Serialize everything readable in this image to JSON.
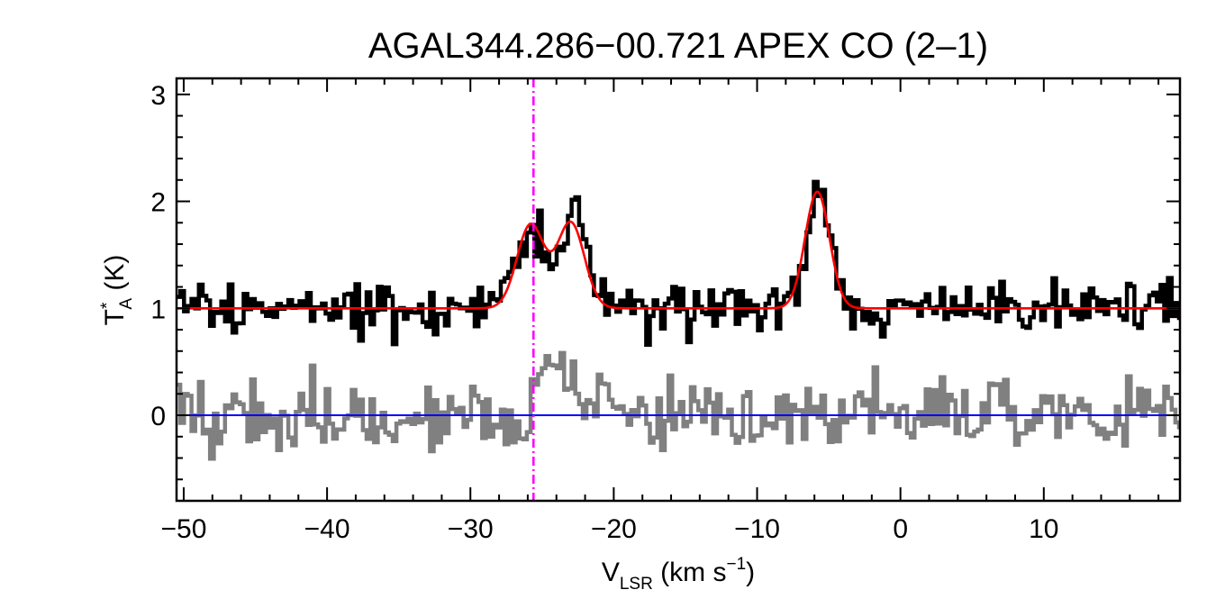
{
  "chart_data": {
    "type": "line",
    "title": "AGAL344.286−00.721  APEX CO (2–1)",
    "xlabel": {
      "main": "V",
      "sub": "LSR",
      "unit_pre": " (km s",
      "sup": "−1",
      "unit_post": ")"
    },
    "ylabel": {
      "main": "T",
      "sup": "*",
      "sub": "A",
      "unit": " (K)"
    },
    "xlim": [
      -50.5,
      19.5
    ],
    "ylim": [
      -0.8,
      3.15
    ],
    "x_ticks": [
      -50,
      -40,
      -30,
      -20,
      -10,
      0,
      10
    ],
    "x_tick_labels": [
      "−50",
      "−40",
      "−30",
      "−20",
      "−10",
      "0",
      "10"
    ],
    "y_ticks": [
      0,
      1,
      2,
      3
    ],
    "y_tick_labels": [
      "0",
      "1",
      "2",
      "3"
    ],
    "x_minor_step": 2,
    "y_minor_step": 0.2,
    "vline": {
      "x": -25.6,
      "color": "#ff00ff",
      "style": "dash-dot"
    },
    "hline": {
      "y": 0,
      "color": "#0000ff"
    },
    "series": [
      {
        "name": "observed spectrum",
        "color": "#000000",
        "style": "steps",
        "offset": 1.0,
        "noise": 0.12,
        "seed": 7
      },
      {
        "name": "residual spectrum",
        "color": "#808080",
        "style": "steps",
        "offset": 0.0,
        "noise": 0.17,
        "seed": 19
      },
      {
        "name": "gaussian fit",
        "color": "#ff0000",
        "style": "line",
        "baseline": 1.0,
        "components": [
          {
            "amp": 0.78,
            "center": -25.8,
            "sigma": 0.95
          },
          {
            "amp": 0.8,
            "center": -23.0,
            "sigma": 0.95
          },
          {
            "amp": 1.09,
            "center": -5.8,
            "sigma": 0.85
          }
        ]
      }
    ],
    "residual_bump": {
      "amp": 0.55,
      "center": -25.0,
      "width": 1.8
    }
  }
}
